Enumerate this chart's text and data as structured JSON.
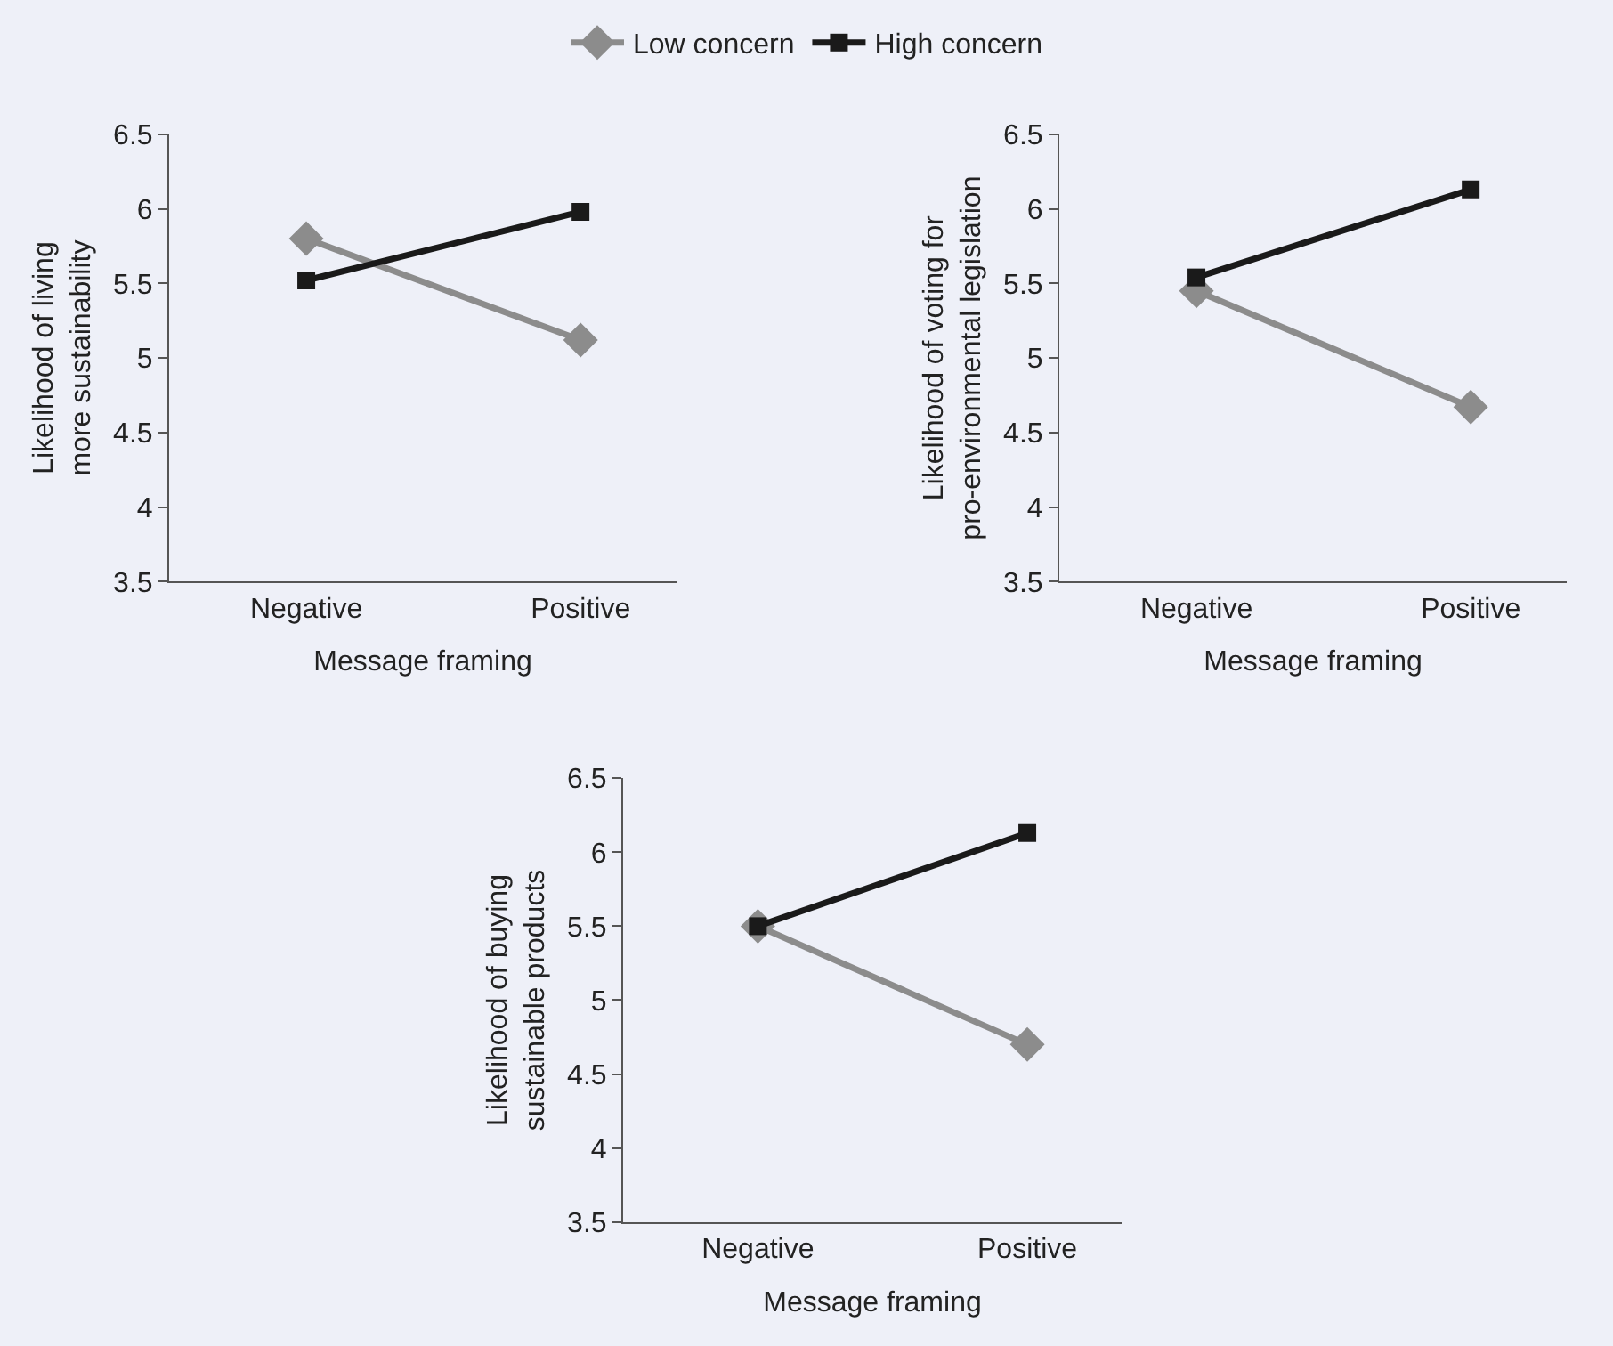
{
  "chart_data": [
    {
      "type": "line",
      "ylabel": "Likelihood of living\nmore sustainability",
      "xlabel": "Message framing",
      "categories": [
        "Negative",
        "Positive"
      ],
      "ylim": [
        3.5,
        6.5
      ],
      "yticks": [
        3.5,
        4,
        4.5,
        5,
        5.5,
        6,
        6.5
      ],
      "legend": "top",
      "grid": false,
      "series": [
        {
          "name": "Low concern",
          "color": "#8c8c8c",
          "marker": "diamond",
          "values": [
            5.8,
            5.12
          ]
        },
        {
          "name": "High concern",
          "color": "#1a1a1a",
          "marker": "square",
          "values": [
            5.52,
            5.98
          ]
        }
      ]
    },
    {
      "type": "line",
      "ylabel": "Likelihood of voting for\npro-environmental legislation",
      "xlabel": "Message framing",
      "categories": [
        "Negative",
        "Positive"
      ],
      "ylim": [
        3.5,
        6.5
      ],
      "yticks": [
        3.5,
        4,
        4.5,
        5,
        5.5,
        6,
        6.5
      ],
      "grid": false,
      "series": [
        {
          "color": "#8c8c8c",
          "marker": "diamond",
          "values": [
            5.45,
            4.67
          ]
        },
        {
          "color": "#1a1a1a",
          "marker": "square",
          "values": [
            5.54,
            6.13
          ]
        }
      ]
    },
    {
      "type": "line",
      "ylabel": "Likelihood of buying\nsustainable products",
      "xlabel": "Message framing",
      "categories": [
        "Negative",
        "Positive"
      ],
      "ylim": [
        3.5,
        6.5
      ],
      "yticks": [
        3.5,
        4,
        4.5,
        5,
        5.5,
        6,
        6.5
      ],
      "grid": false,
      "series": [
        {
          "color": "#8c8c8c",
          "marker": "diamond",
          "values": [
            5.5,
            4.7
          ]
        },
        {
          "color": "#1a1a1a",
          "marker": "square",
          "values": [
            5.5,
            6.13
          ]
        }
      ]
    }
  ]
}
